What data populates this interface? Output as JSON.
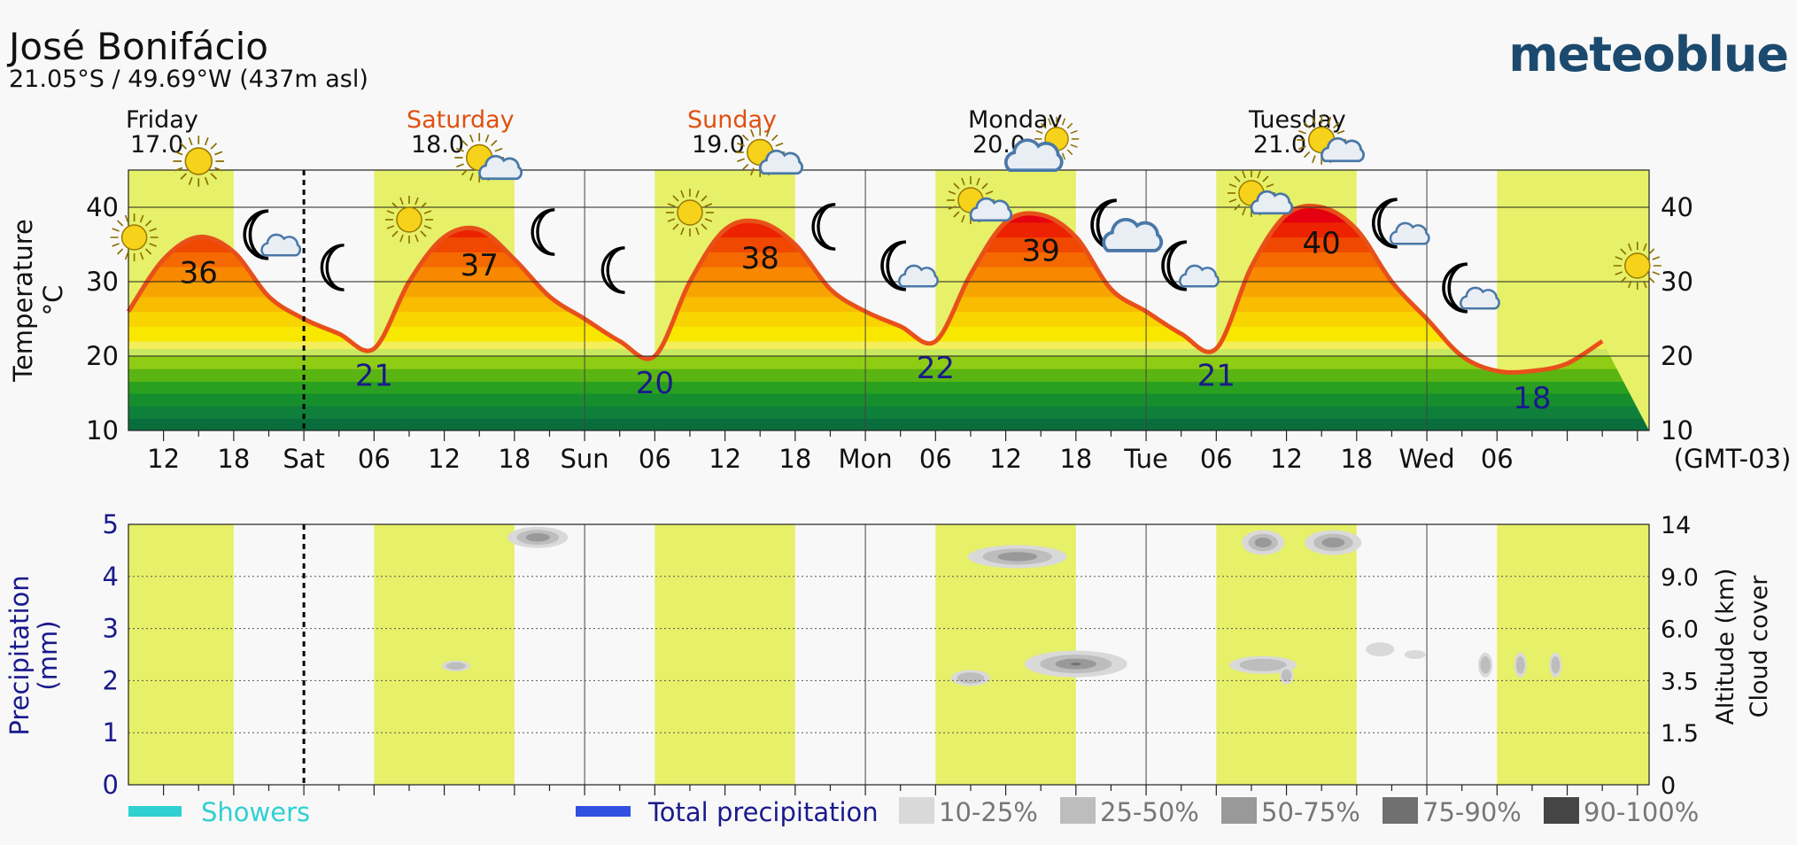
{
  "location": {
    "name": "José Bonifácio",
    "coords": "21.05°S / 49.69°W (437m asl)"
  },
  "brand": "meteoblue",
  "timezone": "(GMT-03)",
  "days": [
    {
      "name": "Friday",
      "date": "17.0",
      "weekend": false
    },
    {
      "name": "Saturday",
      "date": "18.0",
      "weekend": true
    },
    {
      "name": "Sunday",
      "date": "19.0",
      "weekend": true
    },
    {
      "name": "Monday",
      "date": "20.0",
      "weekend": false
    },
    {
      "name": "Tuesday",
      "date": "21.0",
      "weekend": false
    }
  ],
  "x_ticks": [
    "12",
    "18",
    "Sat",
    "06",
    "12",
    "18",
    "Sun",
    "06",
    "12",
    "18",
    "Mon",
    "06",
    "12",
    "18",
    "Tue",
    "06",
    "12",
    "18",
    "Wed",
    "06"
  ],
  "colors": {
    "daylight": "#e6f068",
    "temp_line": "#e8501a",
    "weekend_day": "#e05010",
    "precip_axis": "#1a1a8c",
    "showers": "#30d0d0",
    "total_precip": "#3050e0"
  },
  "chart_data": [
    {
      "type": "area",
      "title": "",
      "ylabel": "Temperature °C",
      "ylim": [
        10,
        45
      ],
      "yticks": [
        "10",
        "20",
        "30",
        "40"
      ],
      "x_unit": "hours since Friday 00:00 (GMT-03)",
      "x": [
        9,
        12,
        15,
        18,
        21,
        24,
        27,
        30,
        33,
        36,
        39,
        42,
        45,
        48,
        51,
        54,
        57,
        60,
        63,
        66,
        69,
        72,
        75,
        78,
        81,
        84,
        87,
        90,
        93,
        96,
        99,
        102,
        105,
        108,
        111,
        114,
        117,
        120,
        123,
        126,
        129,
        132,
        135
      ],
      "series": [
        {
          "values": [
            26,
            33,
            36,
            34,
            28,
            25,
            23,
            21,
            30,
            36,
            37,
            33,
            28,
            25,
            22,
            20,
            30,
            37,
            38,
            35,
            29,
            26,
            24,
            22,
            31,
            38,
            39,
            36,
            29,
            26,
            23,
            21,
            32,
            39,
            40,
            37,
            30,
            25,
            20,
            18,
            18,
            19,
            22
          ]
        }
      ],
      "max_labels": [
        {
          "x": 15,
          "value": "36"
        },
        {
          "x": 39,
          "value": "37"
        },
        {
          "x": 63,
          "value": "38"
        },
        {
          "x": 87,
          "value": "39"
        },
        {
          "x": 111,
          "value": "40"
        }
      ],
      "min_labels": [
        {
          "x": 30,
          "value": "21"
        },
        {
          "x": 54,
          "value": "20"
        },
        {
          "x": 78,
          "value": "22"
        },
        {
          "x": 102,
          "value": "21"
        },
        {
          "x": 129,
          "value": "18"
        }
      ]
    },
    {
      "type": "heatmap",
      "title": "",
      "ylabel": "Precipitation (mm)",
      "ylabel_right": "Altitude (km) Cloud cover",
      "ylim": [
        0,
        5
      ],
      "yticks": [
        "0",
        "1",
        "2",
        "3",
        "4",
        "5"
      ],
      "yticks_right": [
        "0",
        "1.5",
        "3.5",
        "6.0",
        "9.0",
        "14"
      ],
      "legend": [
        {
          "label": "Showers"
        },
        {
          "label": "Total precipitation"
        },
        {
          "label": "10-25%",
          "color": "#d9d9d9"
        },
        {
          "label": "25-50%",
          "color": "#bdbdbd"
        },
        {
          "label": "50-75%",
          "color": "#999999"
        },
        {
          "label": "75-90%",
          "color": "#707070"
        },
        {
          "label": "90-100%",
          "color": "#454545"
        }
      ]
    }
  ]
}
